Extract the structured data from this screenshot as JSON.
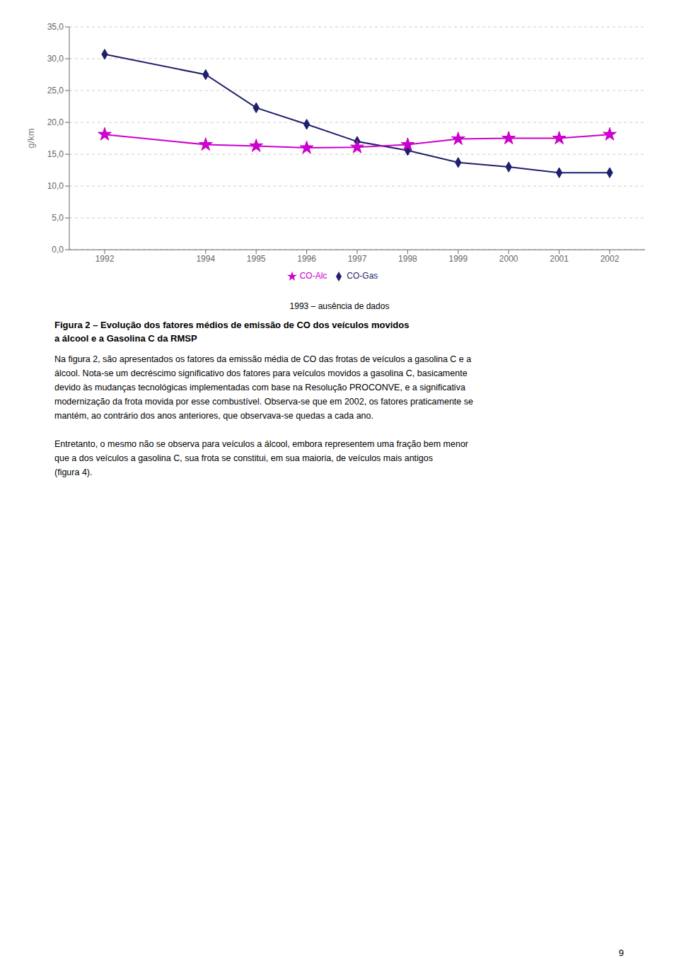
{
  "chart_data": {
    "type": "line",
    "ylabel": "g/km",
    "x": [
      1992,
      1994,
      1995,
      1996,
      1997,
      1998,
      1999,
      2000,
      2001,
      2002
    ],
    "series": [
      {
        "name": "CO-Gas",
        "color": "#1f1f6e",
        "marker": "diamond",
        "values": [
          30.7,
          27.5,
          22.3,
          19.7,
          17.0,
          15.6,
          13.7,
          13.0,
          12.1,
          12.1
        ]
      },
      {
        "name": "CO-Alc",
        "color": "#cc00cc",
        "marker": "star",
        "values": [
          18.1,
          16.5,
          16.3,
          16.0,
          16.1,
          16.5,
          17.4,
          17.5,
          17.5,
          18.1
        ]
      }
    ],
    "xlim": [
      1991.3,
      2002.7
    ],
    "xticks": [
      1992,
      1994,
      1995,
      1996,
      1997,
      1998,
      1999,
      2000,
      2001,
      2002
    ],
    "ylim": [
      0.0,
      35.0
    ],
    "yticks": [
      {
        "value": 0.0,
        "label": "0,0"
      },
      {
        "value": 5.0,
        "label": "5,0"
      },
      {
        "value": 10.0,
        "label": "10,0"
      },
      {
        "value": 15.0,
        "label": "15,0"
      },
      {
        "value": 20.0,
        "label": "20,0"
      },
      {
        "value": 25.0,
        "label": "25,0"
      },
      {
        "value": 30.0,
        "label": "30,0"
      },
      {
        "value": 35.0,
        "label": "35,0"
      }
    ],
    "grid": true,
    "legend": "bottom",
    "note": "1993 – ausência de dados",
    "caption": [
      "Figura 2 – Evolução dos fatores médios de emissão de CO dos veículos movidos",
      "a álcool e a Gasolina C da RMSP"
    ],
    "paragraphs": [
      [
        "Na figura 2, são apresentados os fatores da emissão média de CO das frotas de veículos a gasolina C e a",
        "álcool. Nota-se um decréscimo significativo dos fatores para veículos movidos a gasolina C, basicamente",
        "devido às mudanças tecnológicas implementadas com base na Resolução PROCONVE, e a significativa",
        "modernização da frota movida por esse combustível. Observa-se que em 2002, os fatores praticamente se",
        "mantém, ao contrário dos anos anteriores, que observava-se quedas a cada ano."
      ],
      [
        "Entretanto, o mesmo não se observa para veículos a álcool, embora representem uma fração bem menor",
        "que a dos veículos a gasolina C, sua frota se constitui, em sua maioria, de veículos mais antigos",
        "(figura 4)."
      ]
    ],
    "page_number": "9"
  }
}
